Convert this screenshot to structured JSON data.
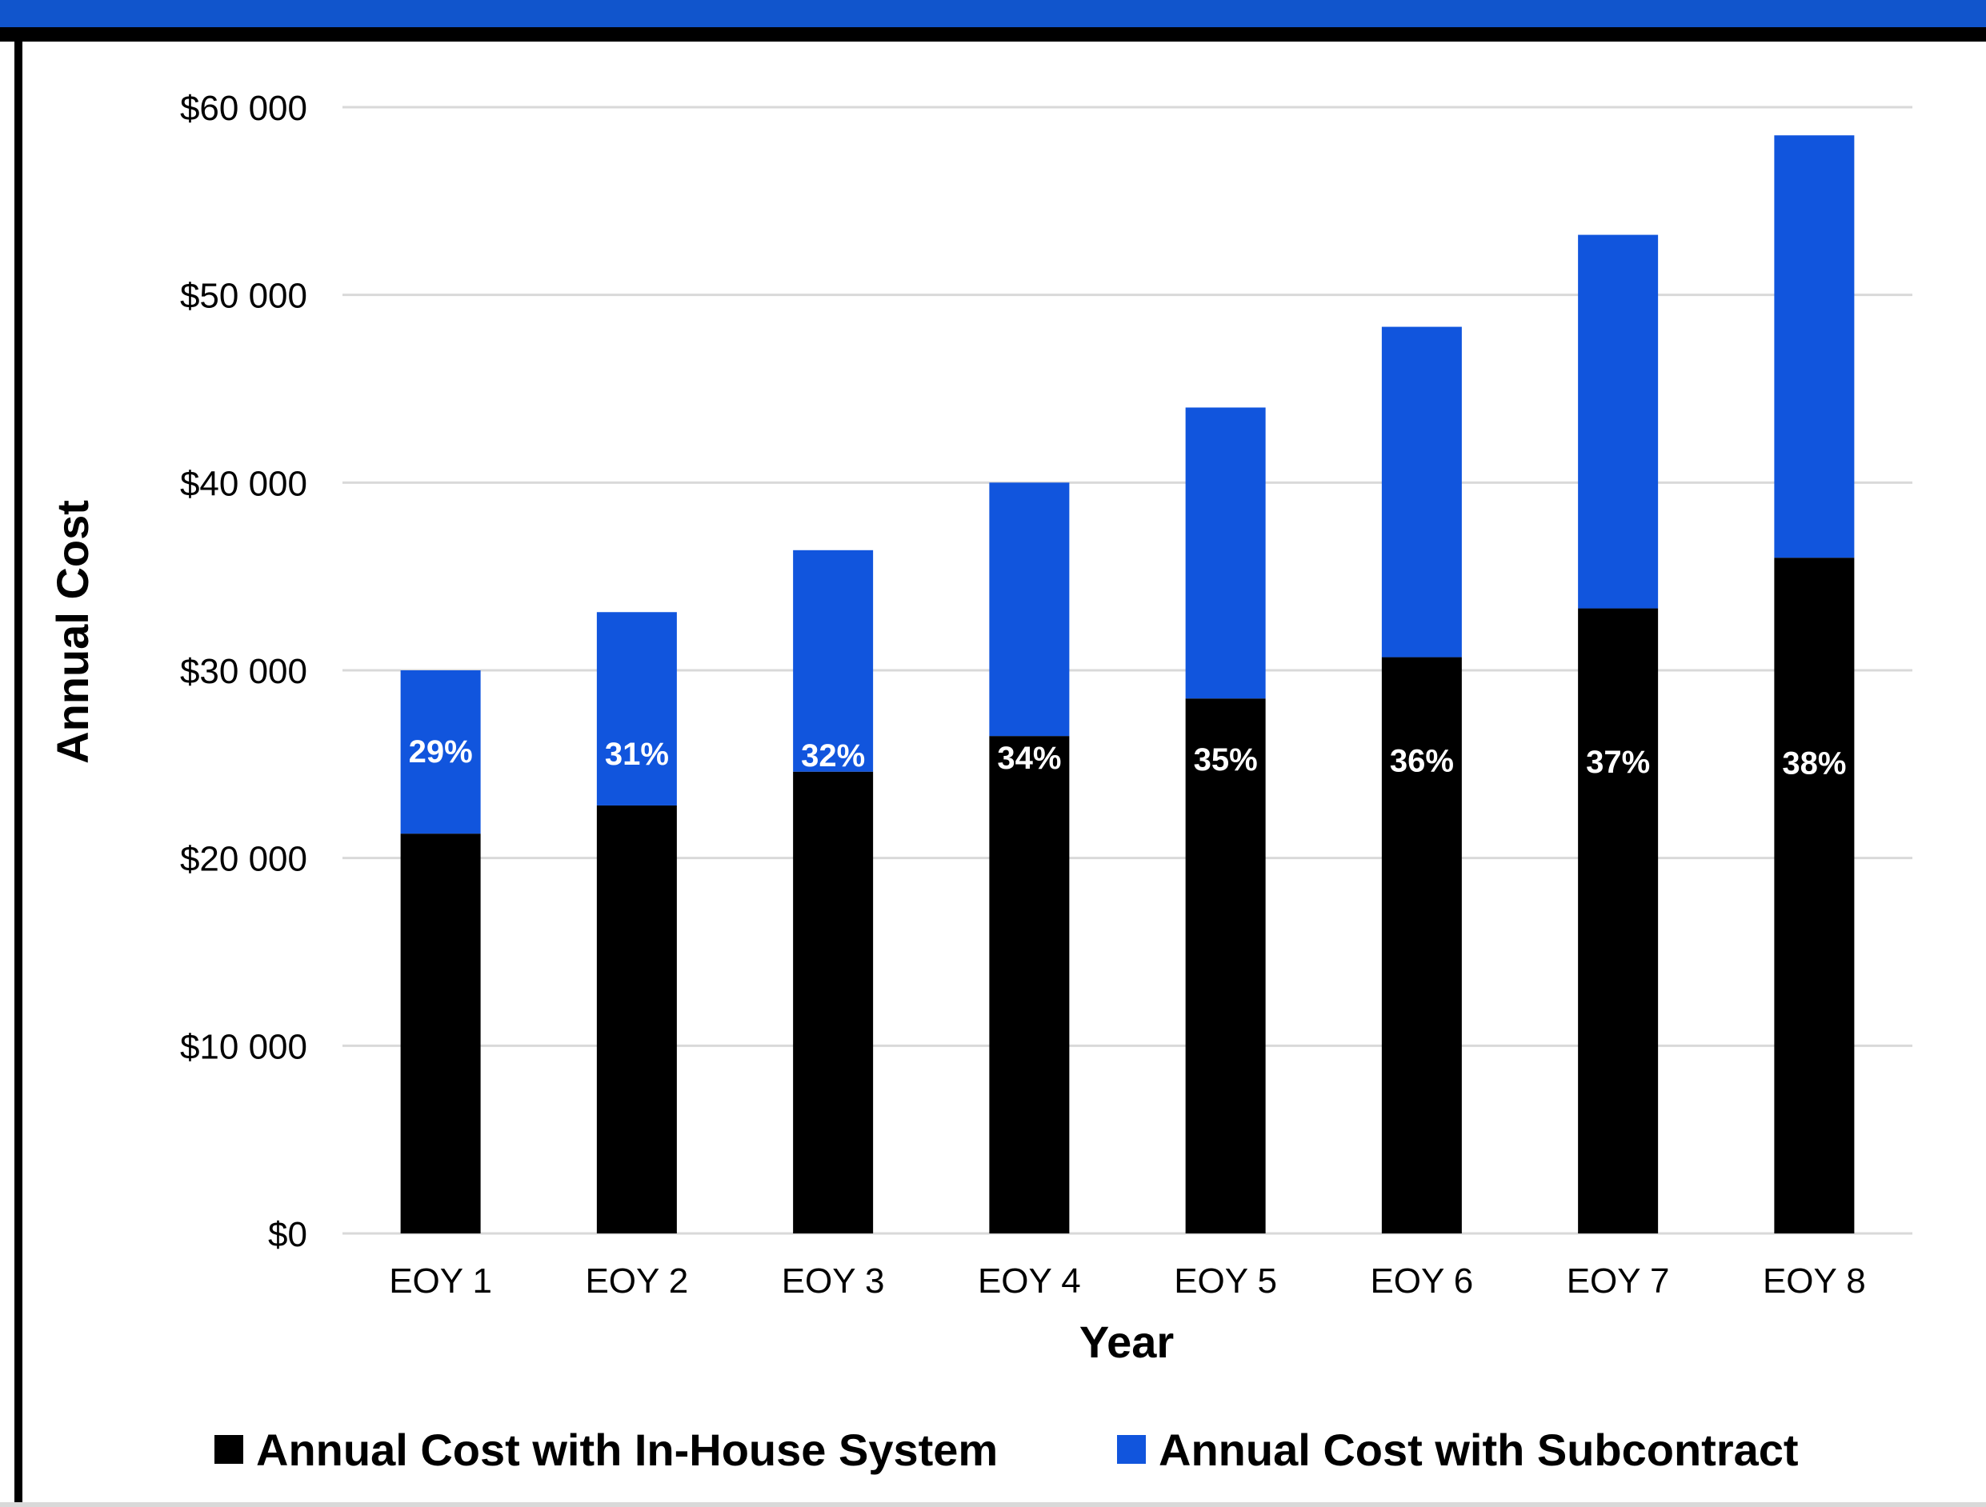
{
  "chart_data": {
    "type": "bar",
    "stacked": true,
    "title": "",
    "xlabel": "Year",
    "ylabel": "Annual Cost",
    "ylim": [
      0,
      60000
    ],
    "yticks": [
      0,
      10000,
      20000,
      30000,
      40000,
      50000,
      60000
    ],
    "ytick_labels": [
      "$0",
      "$10 000",
      "$20 000",
      "$30 000",
      "$40 000",
      "$50 000",
      "$60 000"
    ],
    "grid": true,
    "legend_position": "bottom",
    "categories": [
      "EOY 1",
      "EOY 2",
      "EOY 3",
      "EOY 4",
      "EOY 5",
      "EOY 6",
      "EOY 7",
      "EOY 8"
    ],
    "series": [
      {
        "name": "Annual Cost with In-House System",
        "color": "#000000",
        "values": [
          21300,
          22800,
          24600,
          26500,
          28500,
          30700,
          33300,
          36000
        ]
      },
      {
        "name": "Annual Cost with Subcontract",
        "color": "#1155dd",
        "values": [
          8700,
          10300,
          11800,
          13500,
          15500,
          17600,
          19900,
          22500
        ]
      }
    ],
    "data_labels": [
      "29%",
      "31%",
      "32%",
      "34%",
      "35%",
      "36%",
      "37%",
      "38%"
    ],
    "data_label_values": [
      29,
      31,
      32,
      34,
      35,
      36,
      37,
      38
    ],
    "colors": {
      "grid": "#d9d9d9",
      "label_on_bar": "#ffffff",
      "text": "#000000"
    }
  }
}
